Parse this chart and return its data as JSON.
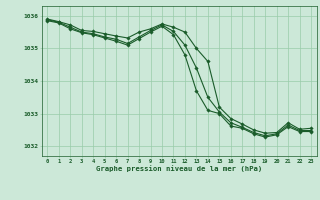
{
  "background_color": "#cce8d8",
  "grid_color": "#99ccaa",
  "line_color": "#1a5c2a",
  "marker_color": "#1a5c2a",
  "title": "Graphe pression niveau de la mer (hPa)",
  "xlim": [
    -0.5,
    23.5
  ],
  "ylim": [
    1031.7,
    1036.3
  ],
  "yticks": [
    1032,
    1033,
    1034,
    1035,
    1036
  ],
  "xticks": [
    0,
    1,
    2,
    3,
    4,
    5,
    6,
    7,
    8,
    9,
    10,
    11,
    12,
    13,
    14,
    15,
    16,
    17,
    18,
    19,
    20,
    21,
    22,
    23
  ],
  "series1_x": [
    0,
    1,
    2,
    3,
    4,
    5,
    6,
    7,
    8,
    9,
    10,
    11,
    12,
    13,
    14,
    15,
    16,
    17,
    18,
    19,
    20,
    21,
    22,
    23
  ],
  "series1_y": [
    1035.9,
    1035.82,
    1035.72,
    1035.55,
    1035.52,
    1035.45,
    1035.38,
    1035.32,
    1035.5,
    1035.6,
    1035.75,
    1035.65,
    1035.5,
    1035.0,
    1034.6,
    1033.2,
    1032.85,
    1032.68,
    1032.5,
    1032.4,
    1032.42,
    1032.72,
    1032.52,
    1032.55
  ],
  "series2_x": [
    0,
    1,
    2,
    3,
    4,
    5,
    6,
    7,
    8,
    9,
    10,
    11,
    12,
    13,
    14,
    15,
    16,
    17,
    18,
    19,
    20,
    21,
    22,
    23
  ],
  "series2_y": [
    1035.88,
    1035.8,
    1035.65,
    1035.5,
    1035.45,
    1035.35,
    1035.28,
    1035.15,
    1035.35,
    1035.55,
    1035.72,
    1035.52,
    1035.1,
    1034.4,
    1033.5,
    1033.05,
    1032.72,
    1032.58,
    1032.42,
    1032.32,
    1032.38,
    1032.65,
    1032.48,
    1032.48
  ],
  "series3_x": [
    0,
    1,
    2,
    3,
    4,
    5,
    6,
    7,
    8,
    9,
    10,
    11,
    12,
    13,
    14,
    15,
    16,
    17,
    18,
    19,
    20,
    21,
    22,
    23
  ],
  "series3_y": [
    1035.85,
    1035.78,
    1035.6,
    1035.48,
    1035.42,
    1035.32,
    1035.22,
    1035.1,
    1035.3,
    1035.5,
    1035.68,
    1035.42,
    1034.8,
    1033.7,
    1033.1,
    1033.0,
    1032.62,
    1032.55,
    1032.38,
    1032.28,
    1032.35,
    1032.6,
    1032.45,
    1032.45
  ]
}
